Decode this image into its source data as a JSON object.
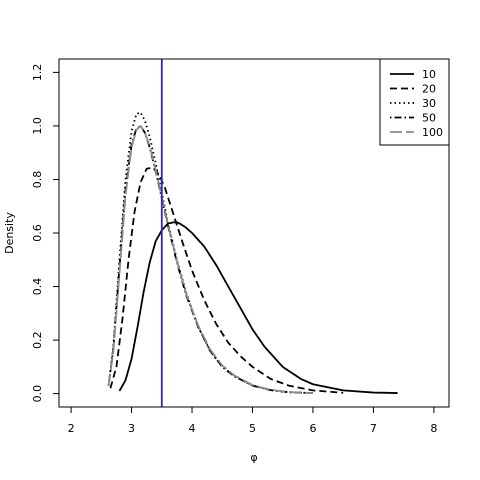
{
  "chart_data": {
    "type": "line",
    "title": "",
    "xlabel": "φ",
    "ylabel": "Density",
    "xlim": [
      1.8,
      8.25
    ],
    "ylim": [
      -0.05,
      1.25
    ],
    "x_ticks": [
      "2",
      "3",
      "4",
      "5",
      "6",
      "7",
      "8"
    ],
    "y_ticks": [
      "0.0",
      "0.2",
      "0.4",
      "0.6",
      "0.8",
      "1.0",
      "1.2"
    ],
    "grid": false,
    "legend_position": "top-right",
    "vline": {
      "x": 3.5,
      "color": "#2a2ab8"
    },
    "series": [
      {
        "name": "10",
        "color": "#000000",
        "style": "solid",
        "x": [
          2.8,
          2.9,
          3.0,
          3.1,
          3.2,
          3.3,
          3.4,
          3.5,
          3.6,
          3.7,
          3.75,
          3.8,
          3.9,
          4.0,
          4.2,
          4.4,
          4.6,
          4.8,
          5.0,
          5.2,
          5.5,
          5.8,
          6.0,
          6.5,
          7.0,
          7.4
        ],
        "y": [
          0.01,
          0.05,
          0.13,
          0.25,
          0.38,
          0.49,
          0.57,
          0.61,
          0.635,
          0.64,
          0.64,
          0.635,
          0.62,
          0.6,
          0.55,
          0.48,
          0.4,
          0.32,
          0.24,
          0.175,
          0.1,
          0.055,
          0.035,
          0.012,
          0.004,
          0.002
        ]
      },
      {
        "name": "20",
        "color": "#000000",
        "style": "dashed",
        "x": [
          2.65,
          2.75,
          2.85,
          2.95,
          3.05,
          3.15,
          3.25,
          3.35,
          3.45,
          3.55,
          3.65,
          3.75,
          3.85,
          4.0,
          4.2,
          4.4,
          4.6,
          4.8,
          5.0,
          5.3,
          5.6,
          6.0,
          6.5
        ],
        "y": [
          0.02,
          0.1,
          0.28,
          0.5,
          0.68,
          0.79,
          0.84,
          0.845,
          0.82,
          0.77,
          0.7,
          0.63,
          0.56,
          0.46,
          0.35,
          0.26,
          0.19,
          0.14,
          0.1,
          0.055,
          0.03,
          0.012,
          0.003
        ]
      },
      {
        "name": "30",
        "color": "#000000",
        "style": "dotted",
        "x": [
          2.62,
          2.7,
          2.8,
          2.9,
          3.0,
          3.08,
          3.15,
          3.22,
          3.3,
          3.4,
          3.5,
          3.6,
          3.75,
          3.9,
          4.1,
          4.3,
          4.5,
          4.7,
          5.0,
          5.3,
          5.6,
          6.0
        ],
        "y": [
          0.03,
          0.18,
          0.5,
          0.8,
          0.98,
          1.045,
          1.05,
          1.02,
          0.96,
          0.86,
          0.75,
          0.64,
          0.5,
          0.38,
          0.25,
          0.16,
          0.1,
          0.065,
          0.03,
          0.013,
          0.005,
          0.002
        ]
      },
      {
        "name": "50",
        "color": "#000000",
        "style": "dotdash",
        "x": [
          2.62,
          2.7,
          2.8,
          2.9,
          3.0,
          3.08,
          3.15,
          3.22,
          3.3,
          3.4,
          3.5,
          3.6,
          3.75,
          3.9,
          4.1,
          4.3,
          4.5,
          4.7,
          5.0,
          5.3,
          5.6,
          6.0
        ],
        "y": [
          0.03,
          0.17,
          0.47,
          0.76,
          0.93,
          0.99,
          1.0,
          0.975,
          0.92,
          0.83,
          0.73,
          0.63,
          0.49,
          0.37,
          0.25,
          0.16,
          0.1,
          0.065,
          0.03,
          0.013,
          0.005,
          0.002
        ]
      },
      {
        "name": "100",
        "color": "#8a8a8a",
        "style": "longdash",
        "x": [
          2.62,
          2.7,
          2.8,
          2.9,
          3.0,
          3.08,
          3.15,
          3.22,
          3.3,
          3.4,
          3.5,
          3.6,
          3.75,
          3.9,
          4.1,
          4.3,
          4.5,
          4.7,
          5.0,
          5.3,
          5.6,
          6.0
        ],
        "y": [
          0.03,
          0.16,
          0.45,
          0.74,
          0.92,
          0.985,
          1.0,
          0.975,
          0.925,
          0.835,
          0.735,
          0.635,
          0.495,
          0.375,
          0.255,
          0.165,
          0.105,
          0.068,
          0.032,
          0.014,
          0.006,
          0.002
        ]
      }
    ]
  }
}
